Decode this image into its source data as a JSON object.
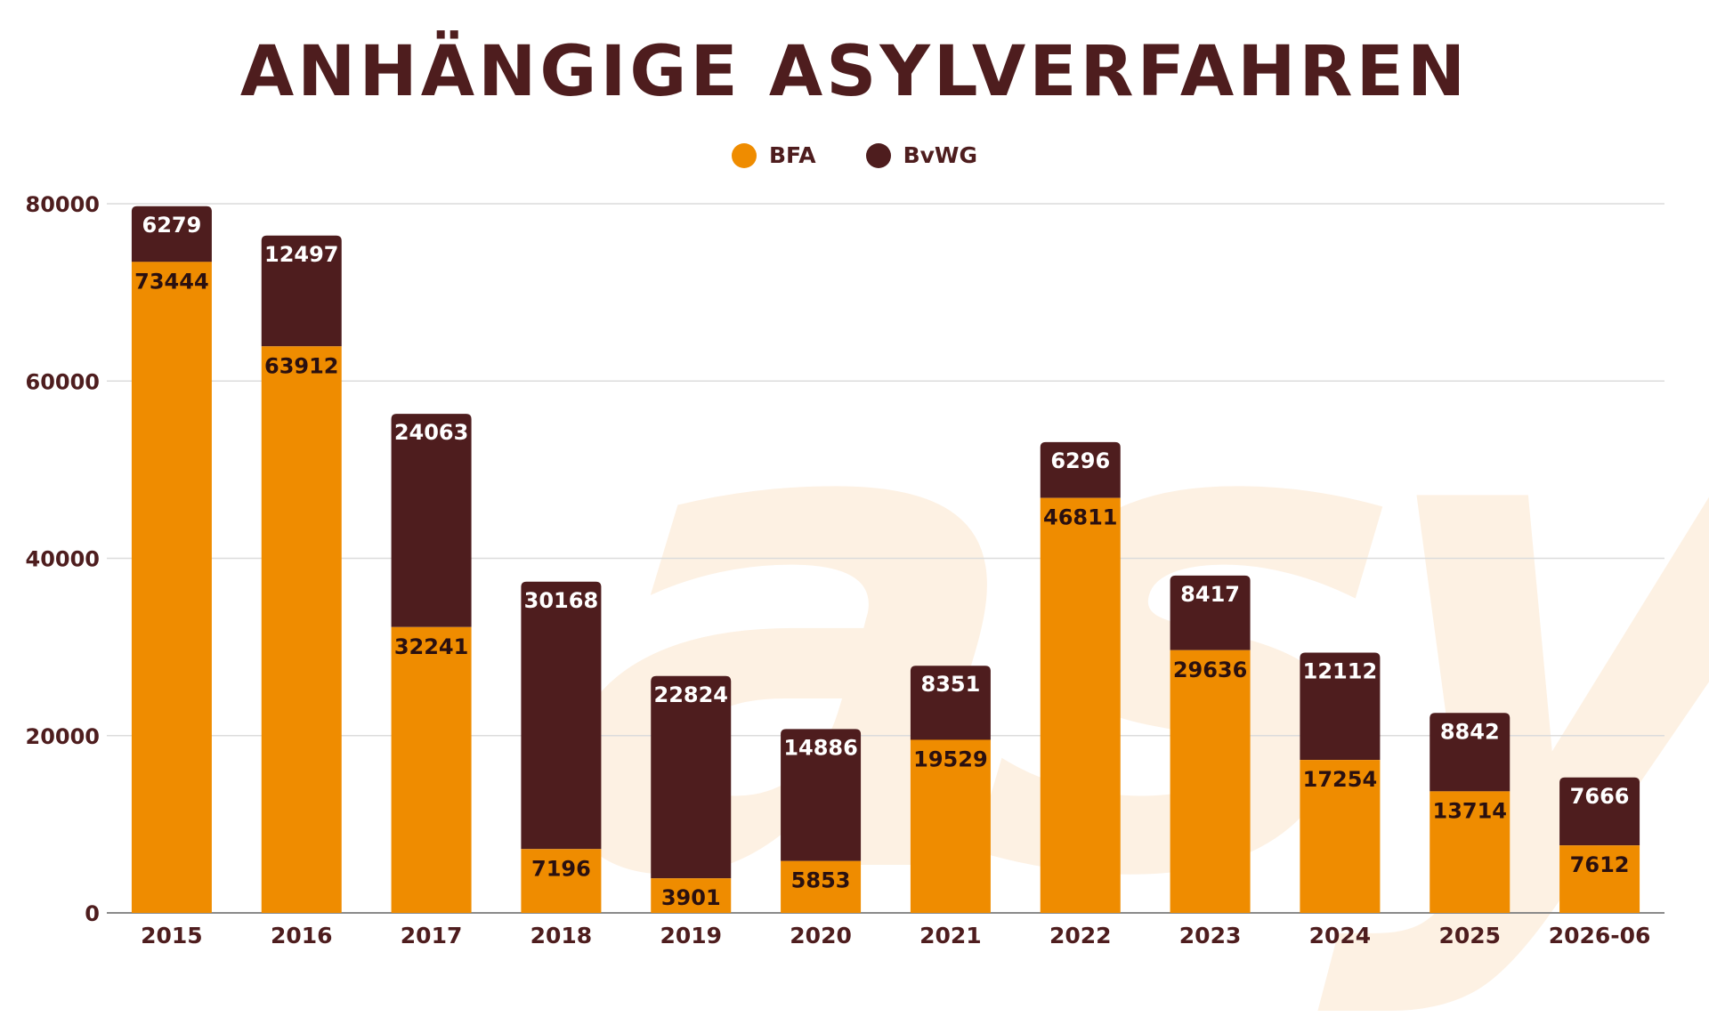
{
  "chart_data": {
    "type": "bar",
    "stacked": true,
    "title": "ANHÄNGIGE ASYLVERFAHREN",
    "categories": [
      "2015",
      "2016",
      "2017",
      "2018",
      "2019",
      "2020",
      "2021",
      "2022",
      "2023",
      "2024",
      "2025",
      "2026-06"
    ],
    "series": [
      {
        "name": "BFA",
        "color": "#ef8c00",
        "values": [
          73444,
          63912,
          32241,
          7196,
          3901,
          5853,
          19529,
          46811,
          29636,
          17254,
          13714,
          7612
        ]
      },
      {
        "name": "BvWG",
        "color": "#4e1d1e",
        "values": [
          6279,
          12497,
          24063,
          30168,
          22824,
          14886,
          8351,
          6296,
          8417,
          12112,
          8842,
          7666
        ]
      }
    ],
    "ylim": [
      0,
      80000
    ],
    "yticks": [
      "0",
      "20000",
      "40000",
      "60000",
      "80000"
    ],
    "grid": true,
    "legend": "top-center"
  },
  "watermark": "asyl"
}
